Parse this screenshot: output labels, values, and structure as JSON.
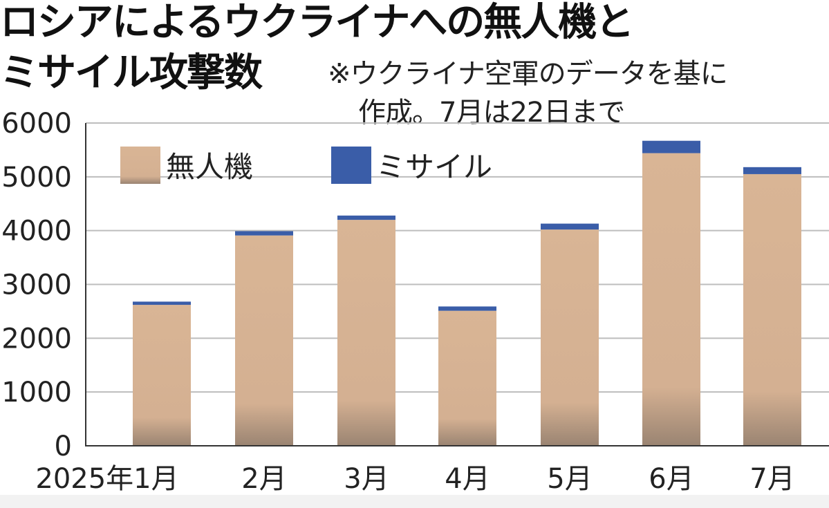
{
  "title": {
    "line1": "ロシアによるウクライナへの無人機と",
    "line2": "ミサイル攻撃数"
  },
  "note": {
    "line1": "※ウクライナ空軍のデータを基に",
    "line2": "作成。7月は22日まで"
  },
  "colors": {
    "drone": "#d9b595",
    "drone_bottom": "#9a8472",
    "missile": "#3a5da8",
    "grid": "#bdbdbd",
    "axis": "#333333",
    "text": "#222222"
  },
  "chart_data": {
    "type": "bar",
    "stacked": true,
    "categories": [
      "2025年1月",
      "2月",
      "3月",
      "4月",
      "5月",
      "6月",
      "7月"
    ],
    "series": [
      {
        "name": "無人機",
        "values": [
          2620,
          3910,
          4200,
          2510,
          4020,
          5440,
          5050
        ]
      },
      {
        "name": "ミサイル",
        "values": [
          60,
          80,
          80,
          80,
          110,
          230,
          130
        ]
      }
    ],
    "ylim": [
      0,
      6000
    ],
    "yticks": [
      "0",
      "1000",
      "2000",
      "3000",
      "4000",
      "5000",
      "6000"
    ],
    "grid": true,
    "legend": "top-left"
  }
}
